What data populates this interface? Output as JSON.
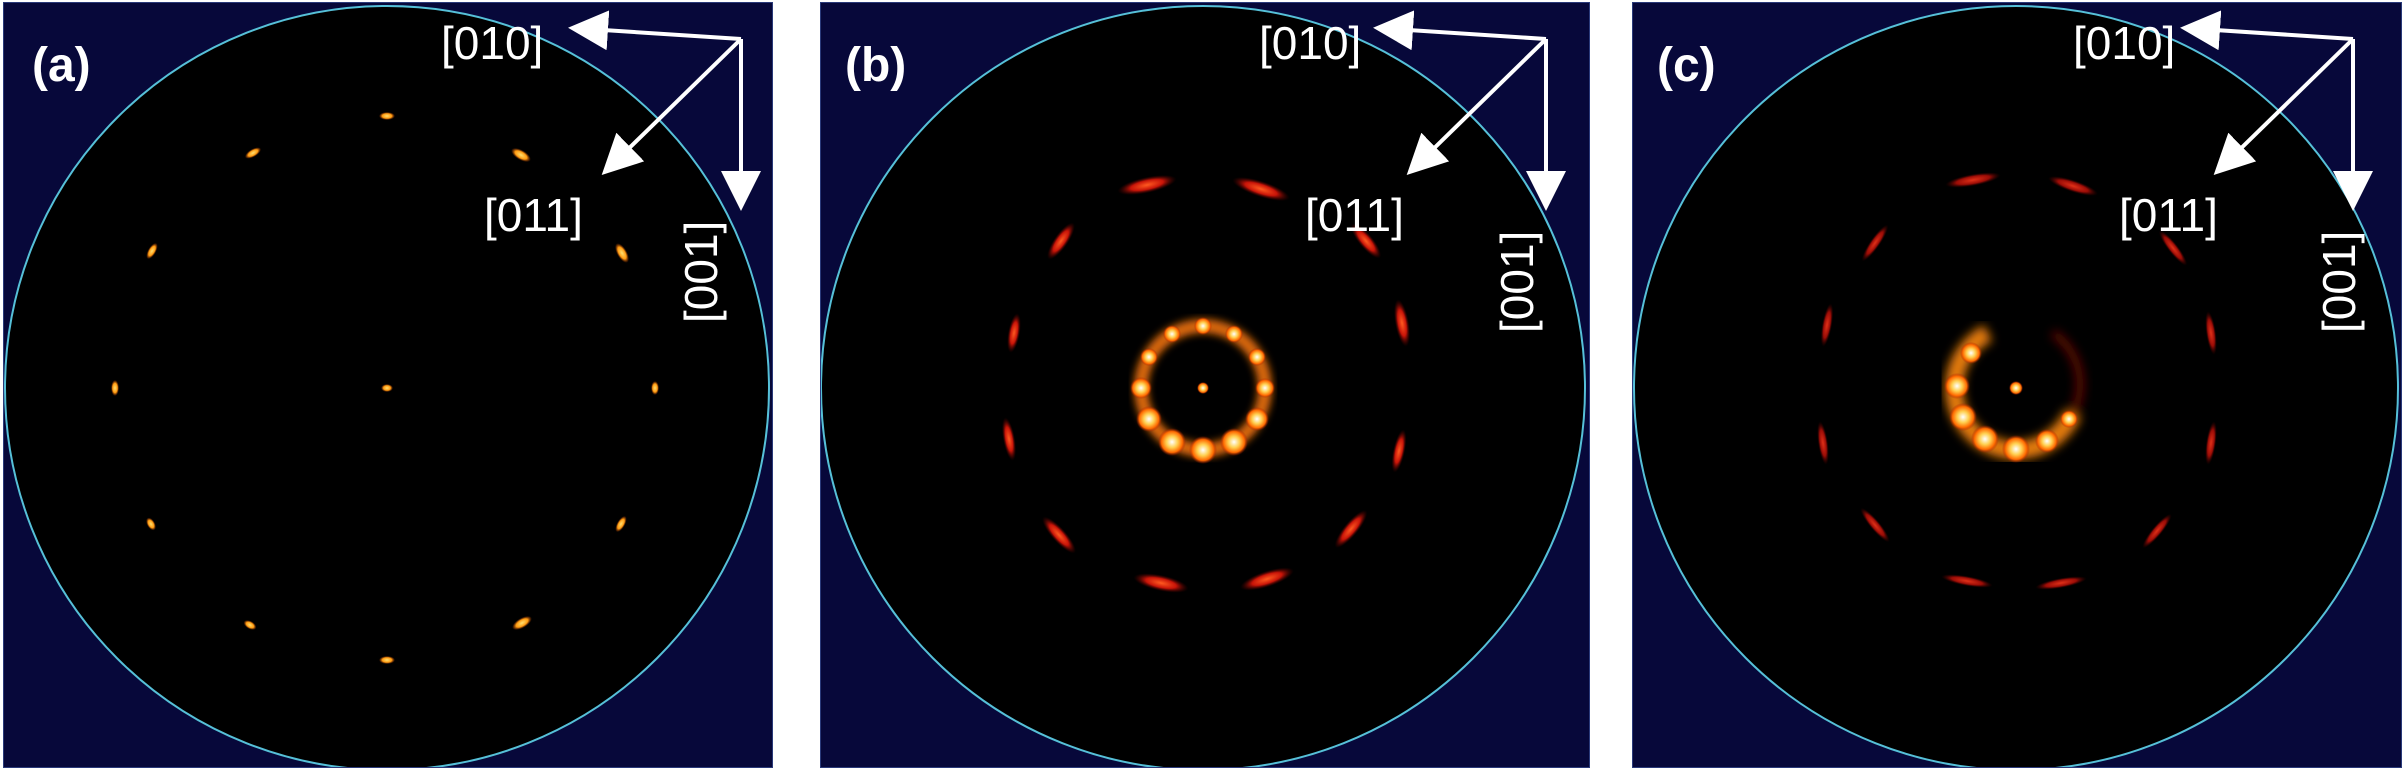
{
  "panels": [
    {
      "label": "(a)",
      "axes": {
        "x_label": "[010]",
        "diag_label": "[011]",
        "y_label": "[001]"
      }
    },
    {
      "label": "(b)",
      "axes": {
        "x_label": "[010]",
        "diag_label": "[011]",
        "y_label": "[001]"
      }
    },
    {
      "label": "(c)",
      "axes": {
        "x_label": "[010]",
        "diag_label": "[011]",
        "y_label": "[001]"
      }
    }
  ],
  "colors": {
    "background": "#07083a",
    "circle_outline": "#56c0d8",
    "disc_fill": "#000000",
    "spot_hot": "#ffffff",
    "spot_mid": "#ffb000",
    "spot_cool": "#d01810"
  }
}
